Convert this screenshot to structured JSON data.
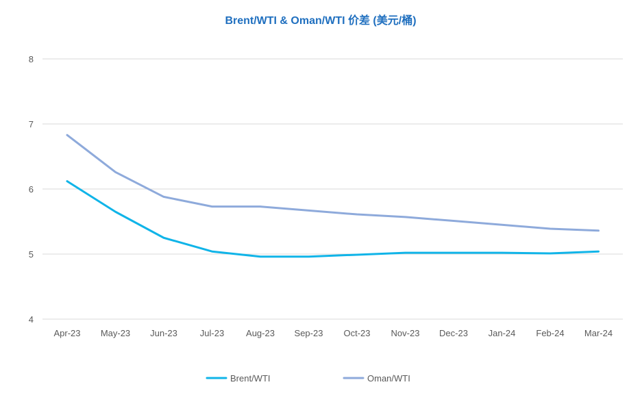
{
  "colors": {
    "title": "#1f6fbf",
    "brent": "#10b4e8",
    "oman": "#8eaadb",
    "grid": "#d9d9d9",
    "text": "#595959"
  },
  "chart_data": {
    "type": "line",
    "title": "Brent/WTI & Oman/WTI 价差 (美元/桶)",
    "xlabel": "",
    "ylabel": "",
    "categories": [
      "Apr-23",
      "May-23",
      "Jun-23",
      "Jul-23",
      "Aug-23",
      "Sep-23",
      "Oct-23",
      "Nov-23",
      "Dec-23",
      "Jan-24",
      "Feb-24",
      "Mar-24"
    ],
    "ylim": [
      4,
      8
    ],
    "yticks": [
      "4",
      "5",
      "6",
      "7",
      "8"
    ],
    "grid": true,
    "legend_position": "bottom",
    "series": [
      {
        "name": "Brent/WTI",
        "values": [
          6.12,
          5.65,
          5.25,
          5.04,
          4.96,
          4.96,
          4.99,
          5.02,
          5.02,
          5.02,
          5.01,
          5.04
        ]
      },
      {
        "name": "Oman/WTI",
        "values": [
          6.83,
          6.26,
          5.88,
          5.73,
          5.73,
          5.67,
          5.61,
          5.57,
          5.51,
          5.45,
          5.39,
          5.36
        ]
      }
    ]
  }
}
